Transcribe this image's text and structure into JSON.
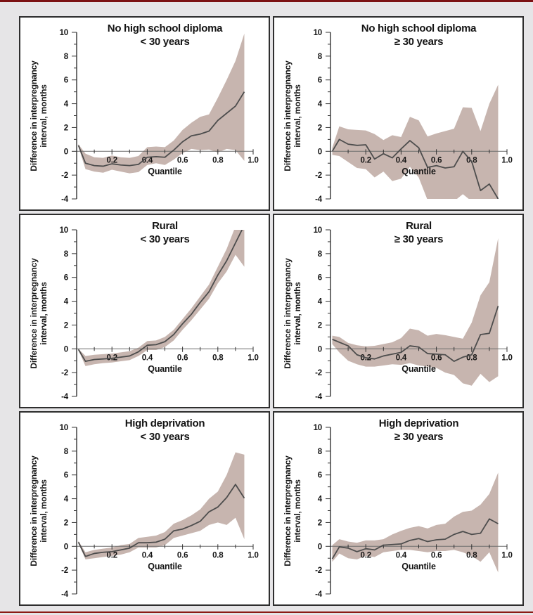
{
  "page": {
    "background": "#e6e5e7",
    "top_rule_color": "#7c1113",
    "bottom_rule_color": "#8c1a15",
    "panel_border_color": "#2e2e2e",
    "band_color": "#c7b5af",
    "line_color": "#4d4d4d",
    "zero_line_color": "#6e6e6e",
    "axis_color": "#333333"
  },
  "chart_data": [
    {
      "type": "line",
      "title_line1": "No high school diploma",
      "title_line2": "< 30 years",
      "xlabel": "Quantile",
      "ylabel_line1": "Difference in interpregnancy",
      "ylabel_line2": "interval, months",
      "ylim": [
        -4,
        10
      ],
      "yticks": [
        10,
        8,
        6,
        4,
        2,
        0,
        -2,
        -4
      ],
      "yticks_minor": [
        9,
        7,
        5,
        3,
        1,
        -1,
        -3
      ],
      "xticks": [
        "0.2",
        "0.4",
        "0.6",
        "0.8",
        "1.0"
      ],
      "xticks_minor": [
        0.1,
        0.3,
        0.5,
        0.7,
        0.9
      ],
      "x": [
        0.01,
        0.05,
        0.1,
        0.15,
        0.2,
        0.25,
        0.3,
        0.35,
        0.4,
        0.45,
        0.5,
        0.55,
        0.6,
        0.65,
        0.7,
        0.75,
        0.8,
        0.85,
        0.9,
        0.95
      ],
      "line": [
        0.5,
        -1.0,
        -1.2,
        -1.25,
        -1.05,
        -1.15,
        -1.2,
        -1.1,
        -0.5,
        -0.45,
        -0.5,
        0.1,
        0.8,
        1.3,
        1.45,
        1.7,
        2.6,
        3.2,
        3.8,
        5.0
      ],
      "upper": [
        0.6,
        -0.2,
        -0.5,
        -0.55,
        -0.35,
        -0.5,
        -0.55,
        -0.4,
        0.35,
        0.4,
        0.35,
        0.9,
        1.8,
        2.4,
        2.9,
        3.1,
        4.5,
        6.0,
        7.6,
        9.9
      ],
      "lower": [
        0.4,
        -1.5,
        -1.7,
        -1.8,
        -1.55,
        -1.7,
        -1.85,
        -1.75,
        -1.15,
        -1.0,
        -1.15,
        -0.7,
        -0.15,
        0.2,
        0.1,
        0.15,
        -0.1,
        0.2,
        0.1,
        -0.8
      ]
    },
    {
      "type": "line",
      "title_line1": "No high school diploma",
      "title_line2": "≥ 30 years",
      "xlabel": "Quantile",
      "ylabel_line1": "Difference in interpregnancy",
      "ylabel_line2": "interval, months",
      "ylim": [
        -4,
        10
      ],
      "yticks": [
        10,
        8,
        6,
        4,
        2,
        0,
        -2,
        -4
      ],
      "yticks_minor": [
        9,
        7,
        5,
        3,
        1,
        -1,
        -3
      ],
      "xticks": [
        "0.2",
        "0.4",
        "0.6",
        "0.8",
        "1.0"
      ],
      "xticks_minor": [
        0.1,
        0.3,
        0.5,
        0.7,
        0.9
      ],
      "x": [
        0.01,
        0.05,
        0.1,
        0.15,
        0.2,
        0.25,
        0.3,
        0.35,
        0.4,
        0.45,
        0.5,
        0.55,
        0.6,
        0.65,
        0.7,
        0.75,
        0.8,
        0.85,
        0.9,
        0.95
      ],
      "line": [
        0.0,
        1.0,
        0.6,
        0.5,
        0.55,
        -0.65,
        -0.2,
        -0.55,
        0.2,
        0.9,
        0.3,
        -1.35,
        -1.2,
        -1.4,
        -1.3,
        0.0,
        -0.85,
        -3.3,
        -2.75,
        -4.0
      ],
      "upper": [
        0.3,
        2.1,
        1.85,
        1.8,
        1.75,
        1.45,
        0.95,
        1.35,
        1.2,
        2.9,
        2.6,
        1.25,
        1.5,
        1.7,
        1.9,
        3.7,
        3.65,
        1.7,
        4.0,
        5.6
      ],
      "lower": [
        -0.3,
        -0.4,
        -0.9,
        -1.4,
        -1.5,
        -2.2,
        -1.7,
        -2.5,
        -2.3,
        -1.3,
        -2.2,
        -4.1,
        -4.2,
        -4.2,
        -4.2,
        -3.6,
        -4.2,
        -4.2,
        -4.2,
        -4.2
      ]
    },
    {
      "type": "line",
      "title_line1": "Rural",
      "title_line2": "< 30 years",
      "xlabel": "Quantile",
      "ylabel_line1": "Difference in interpregnancy",
      "ylabel_line2": "interval, months",
      "ylim": [
        -4,
        10
      ],
      "yticks": [
        10,
        8,
        6,
        4,
        2,
        0,
        -2,
        -4
      ],
      "yticks_minor": [
        9,
        7,
        5,
        3,
        1,
        -1,
        -3
      ],
      "xticks": [
        "0.2",
        "0.4",
        "0.6",
        "0.8",
        "1.0"
      ],
      "xticks_minor": [
        0.1,
        0.3,
        0.5,
        0.7,
        0.9
      ],
      "x": [
        0.01,
        0.05,
        0.1,
        0.15,
        0.2,
        0.25,
        0.3,
        0.35,
        0.4,
        0.45,
        0.5,
        0.55,
        0.6,
        0.65,
        0.7,
        0.75,
        0.8,
        0.85,
        0.9,
        0.95
      ],
      "line": [
        -0.05,
        -1.05,
        -0.9,
        -0.85,
        -0.8,
        -0.7,
        -0.6,
        -0.25,
        0.3,
        0.35,
        0.6,
        1.2,
        2.1,
        2.9,
        3.9,
        4.8,
        6.2,
        7.4,
        8.9,
        10.4
      ],
      "upper": [
        0.0,
        -0.6,
        -0.5,
        -0.45,
        -0.4,
        -0.3,
        -0.2,
        0.1,
        0.65,
        0.7,
        1.0,
        1.6,
        2.5,
        3.4,
        4.4,
        5.4,
        6.9,
        8.4,
        10.3,
        10.6
      ],
      "lower": [
        -0.1,
        -1.45,
        -1.3,
        -1.2,
        -1.15,
        -1.05,
        -0.95,
        -0.6,
        -0.1,
        -0.1,
        0.15,
        0.7,
        1.6,
        2.4,
        3.3,
        4.2,
        5.5,
        6.5,
        7.9,
        6.9
      ]
    },
    {
      "type": "line",
      "title_line1": "Rural",
      "title_line2": "≥ 30 years",
      "xlabel": "Quantile",
      "ylabel_line1": "Difference in interpregnancy",
      "ylabel_line2": "interval, months",
      "ylim": [
        -4,
        10
      ],
      "yticks": [
        10,
        8,
        6,
        4,
        2,
        0,
        -2,
        -4
      ],
      "yticks_minor": [
        9,
        7,
        5,
        3,
        1,
        -1,
        -3
      ],
      "xticks": [
        "0.2",
        "0.4",
        "0.6",
        "0.8",
        "1.0"
      ],
      "xticks_minor": [
        0.1,
        0.3,
        0.5,
        0.7,
        0.9
      ],
      "x": [
        0.01,
        0.05,
        0.1,
        0.15,
        0.2,
        0.25,
        0.3,
        0.35,
        0.4,
        0.45,
        0.5,
        0.55,
        0.6,
        0.65,
        0.7,
        0.75,
        0.8,
        0.85,
        0.9,
        0.95
      ],
      "line": [
        0.8,
        0.55,
        0.25,
        -0.5,
        -0.75,
        -0.85,
        -0.6,
        -0.45,
        -0.3,
        0.25,
        0.15,
        -0.4,
        -0.45,
        -0.5,
        -1.05,
        -0.7,
        -0.5,
        1.2,
        1.3,
        3.6
      ],
      "upper": [
        1.1,
        1.0,
        0.5,
        0.3,
        0.2,
        0.25,
        0.4,
        0.55,
        0.9,
        1.7,
        1.55,
        1.1,
        1.25,
        1.15,
        1.0,
        0.85,
        2.2,
        4.5,
        5.6,
        9.3
      ],
      "lower": [
        0.4,
        -0.3,
        -1.0,
        -1.3,
        -1.5,
        -1.5,
        -1.4,
        -1.3,
        -1.35,
        -1.2,
        -1.4,
        -1.5,
        -1.6,
        -2.0,
        -2.2,
        -2.9,
        -3.1,
        -2.1,
        -2.8,
        -2.3
      ]
    },
    {
      "type": "line",
      "title_line1": "High deprivation",
      "title_line2": "< 30 years",
      "xlabel": "Quantile",
      "ylabel_line1": "Difference in interpregnancy",
      "ylabel_line2": "interval, months",
      "ylim": [
        -4,
        10
      ],
      "yticks": [
        10,
        8,
        6,
        4,
        2,
        0,
        -2,
        -4
      ],
      "yticks_minor": [
        9,
        7,
        5,
        3,
        1,
        -1,
        -3
      ],
      "xticks": [
        "0.2",
        "0.4",
        "0.6",
        "0.8",
        "1.0"
      ],
      "xticks_minor": [
        0.1,
        0.3,
        0.5,
        0.7,
        0.9
      ],
      "x": [
        0.01,
        0.05,
        0.1,
        0.15,
        0.2,
        0.25,
        0.3,
        0.35,
        0.4,
        0.45,
        0.5,
        0.55,
        0.6,
        0.65,
        0.7,
        0.75,
        0.8,
        0.85,
        0.9,
        0.95
      ],
      "line": [
        0.35,
        -0.85,
        -0.6,
        -0.5,
        -0.45,
        -0.3,
        -0.15,
        0.3,
        0.3,
        0.35,
        0.6,
        1.3,
        1.45,
        1.75,
        2.1,
        2.9,
        3.3,
        4.1,
        5.2,
        4.05
      ],
      "upper": [
        0.45,
        -0.5,
        -0.3,
        -0.2,
        -0.1,
        0.1,
        0.2,
        0.7,
        0.8,
        0.9,
        1.2,
        1.9,
        2.2,
        2.6,
        3.1,
        4.0,
        4.6,
        6.0,
        7.9,
        7.7
      ],
      "lower": [
        0.25,
        -1.1,
        -1.0,
        -0.9,
        -0.8,
        -0.7,
        -0.5,
        -0.1,
        -0.1,
        -0.1,
        0.1,
        0.7,
        0.9,
        1.1,
        1.3,
        1.8,
        2.0,
        1.8,
        2.4,
        0.6
      ]
    },
    {
      "type": "line",
      "title_line1": "High deprivation",
      "title_line2": "≥ 30 years",
      "xlabel": "Quantile",
      "ylabel_line1": "Difference in interpregnancy",
      "ylabel_line2": "interval, months",
      "ylim": [
        -4,
        10
      ],
      "yticks": [
        10,
        8,
        6,
        4,
        2,
        0,
        -2,
        -4
      ],
      "yticks_minor": [
        9,
        7,
        5,
        3,
        1,
        -1,
        -3
      ],
      "xticks": [
        "0.2",
        "0.4",
        "0.6",
        "0.8",
        "1.0"
      ],
      "xticks_minor": [
        0.1,
        0.3,
        0.5,
        0.7,
        0.9
      ],
      "x": [
        0.01,
        0.05,
        0.1,
        0.15,
        0.2,
        0.25,
        0.3,
        0.35,
        0.4,
        0.45,
        0.5,
        0.55,
        0.6,
        0.65,
        0.7,
        0.75,
        0.8,
        0.85,
        0.9,
        0.95
      ],
      "line": [
        -1.05,
        -0.05,
        -0.15,
        -0.45,
        -0.2,
        -0.3,
        0.1,
        0.15,
        0.2,
        0.5,
        0.65,
        0.4,
        0.55,
        0.6,
        1.0,
        1.25,
        1.0,
        1.1,
        2.3,
        1.9
      ],
      "upper": [
        0.1,
        0.6,
        0.4,
        0.3,
        0.5,
        0.5,
        0.6,
        1.0,
        1.3,
        1.55,
        1.7,
        1.5,
        1.8,
        1.9,
        2.5,
        2.9,
        3.0,
        3.5,
        4.4,
        6.2
      ],
      "lower": [
        -1.3,
        -0.6,
        -1.0,
        -1.1,
        -0.8,
        -0.9,
        -0.5,
        -0.4,
        -0.3,
        -0.3,
        -0.4,
        -0.5,
        -0.4,
        -0.4,
        -0.3,
        -0.5,
        -0.8,
        -1.3,
        -0.5,
        -2.2
      ]
    }
  ]
}
